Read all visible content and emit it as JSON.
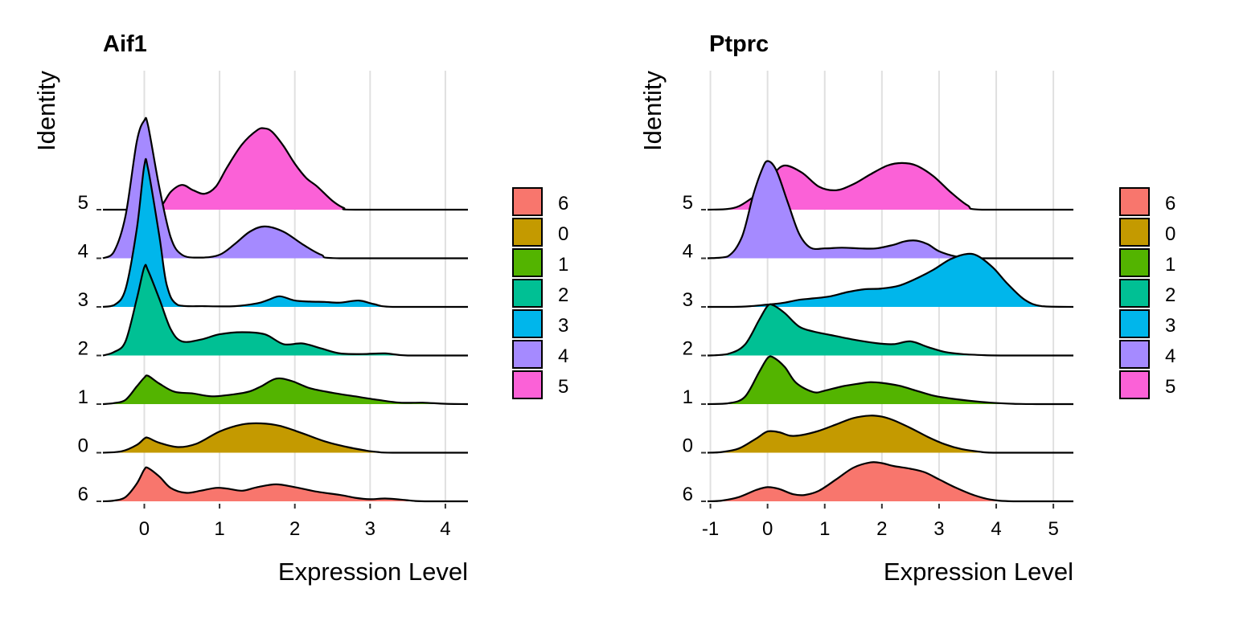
{
  "colors": {
    "6": "#F8766D",
    "0": "#C49A00",
    "1": "#53B400",
    "2": "#00C094",
    "3": "#00B6EB",
    "4": "#A58AFF",
    "5": "#FB61D7"
  },
  "chart_data": [
    {
      "type": "ridgeline",
      "title": "Aif1",
      "xlabel": "Expression Level",
      "ylabel": "Identity",
      "xlim": [
        -0.55,
        4.3
      ],
      "xticks": [
        "0",
        "1",
        "2",
        "3",
        "4"
      ],
      "yticks": [
        "6",
        "0",
        "1",
        "2",
        "3",
        "4",
        "5"
      ],
      "grid": true,
      "legend": {
        "position": "right",
        "entries": [
          "6",
          "0",
          "1",
          "2",
          "3",
          "4",
          "5"
        ]
      },
      "series": [
        {
          "name": "6",
          "x": [
            -0.55,
            -0.4,
            -0.25,
            -0.1,
            0.0,
            0.05,
            0.2,
            0.35,
            0.55,
            0.75,
            0.95,
            1.1,
            1.3,
            1.5,
            1.75,
            2.0,
            2.3,
            2.6,
            2.8,
            3.0,
            3.2,
            3.4,
            3.6,
            3.8,
            4.3
          ],
          "density": [
            0.0,
            0.02,
            0.12,
            0.5,
            0.9,
            0.94,
            0.7,
            0.38,
            0.24,
            0.3,
            0.38,
            0.36,
            0.3,
            0.4,
            0.48,
            0.4,
            0.27,
            0.18,
            0.1,
            0.06,
            0.08,
            0.05,
            0.01,
            0.0,
            0.0
          ]
        },
        {
          "name": "0",
          "x": [
            -0.55,
            -0.3,
            -0.1,
            0.0,
            0.05,
            0.2,
            0.45,
            0.7,
            1.0,
            1.3,
            1.55,
            1.8,
            2.1,
            2.4,
            2.7,
            2.95,
            3.1,
            3.3,
            4.3
          ],
          "density": [
            0.0,
            0.04,
            0.22,
            0.4,
            0.42,
            0.28,
            0.16,
            0.26,
            0.6,
            0.8,
            0.83,
            0.76,
            0.55,
            0.32,
            0.16,
            0.06,
            0.02,
            0.0,
            0.0
          ]
        },
        {
          "name": "1",
          "x": [
            -0.55,
            -0.4,
            -0.25,
            -0.1,
            0.0,
            0.05,
            0.2,
            0.4,
            0.65,
            0.9,
            1.2,
            1.4,
            1.55,
            1.75,
            1.95,
            2.2,
            2.5,
            2.8,
            3.1,
            3.4,
            3.7,
            4.0,
            4.3
          ],
          "density": [
            0.0,
            0.03,
            0.12,
            0.5,
            0.75,
            0.8,
            0.58,
            0.35,
            0.3,
            0.22,
            0.28,
            0.36,
            0.5,
            0.72,
            0.66,
            0.45,
            0.32,
            0.22,
            0.12,
            0.04,
            0.04,
            0.01,
            0.0
          ]
        },
        {
          "name": "2",
          "x": [
            -0.55,
            -0.4,
            -0.25,
            -0.1,
            0.0,
            0.05,
            0.2,
            0.35,
            0.5,
            0.75,
            1.0,
            1.3,
            1.6,
            1.85,
            2.1,
            2.35,
            2.6,
            2.9,
            3.2,
            3.5,
            4.3
          ],
          "density": [
            0.0,
            0.1,
            0.4,
            1.6,
            2.5,
            2.4,
            1.6,
            0.75,
            0.4,
            0.45,
            0.6,
            0.66,
            0.6,
            0.32,
            0.34,
            0.2,
            0.06,
            0.04,
            0.06,
            0.0,
            0.0
          ]
        },
        {
          "name": "3",
          "x": [
            -0.55,
            -0.4,
            -0.25,
            -0.1,
            0.0,
            0.05,
            0.2,
            0.3,
            0.45,
            0.8,
            1.2,
            1.5,
            1.65,
            1.8,
            2.0,
            2.2,
            2.4,
            2.6,
            2.85,
            3.05,
            3.3,
            4.3
          ],
          "density": [
            0.0,
            0.05,
            0.5,
            2.2,
            4.0,
            3.9,
            2.0,
            0.6,
            0.05,
            0.02,
            0.02,
            0.1,
            0.2,
            0.3,
            0.18,
            0.15,
            0.14,
            0.12,
            0.18,
            0.08,
            0.0,
            0.0
          ]
        },
        {
          "name": "4",
          "x": [
            -0.55,
            -0.4,
            -0.25,
            -0.1,
            0.0,
            0.05,
            0.2,
            0.35,
            0.5,
            0.75,
            1.0,
            1.2,
            1.4,
            1.6,
            1.85,
            2.1,
            2.35,
            2.6,
            4.3
          ],
          "density": [
            0.0,
            0.2,
            1.2,
            3.3,
            3.9,
            3.75,
            2.0,
            0.6,
            0.1,
            0.02,
            0.1,
            0.4,
            0.75,
            0.9,
            0.75,
            0.4,
            0.1,
            0.0,
            0.0
          ]
        },
        {
          "name": "5",
          "x": [
            -0.55,
            0.0,
            0.2,
            0.35,
            0.5,
            0.65,
            0.8,
            0.95,
            1.1,
            1.3,
            1.5,
            1.6,
            1.7,
            1.85,
            2.0,
            2.15,
            2.3,
            2.5,
            2.65,
            2.8,
            4.3
          ],
          "density": [
            0.0,
            0.0,
            0.05,
            0.5,
            0.7,
            0.55,
            0.45,
            0.65,
            1.2,
            1.85,
            2.25,
            2.3,
            2.2,
            1.8,
            1.3,
            0.9,
            0.65,
            0.25,
            0.05,
            0.0,
            0.0
          ]
        }
      ]
    },
    {
      "type": "ridgeline",
      "title": "Ptprc",
      "xlabel": "Expression Level",
      "ylabel": "Identity",
      "xlim": [
        -1.05,
        5.35
      ],
      "xticks": [
        "-1",
        "0",
        "1",
        "2",
        "3",
        "4",
        "5"
      ],
      "yticks": [
        "6",
        "0",
        "1",
        "2",
        "3",
        "4",
        "5"
      ],
      "grid": true,
      "legend": {
        "position": "right",
        "entries": [
          "6",
          "0",
          "1",
          "2",
          "3",
          "4",
          "5"
        ]
      },
      "series": [
        {
          "name": "6",
          "x": [
            -1.05,
            -0.8,
            -0.5,
            -0.2,
            0.0,
            0.2,
            0.45,
            0.65,
            0.9,
            1.2,
            1.5,
            1.8,
            2.0,
            2.2,
            2.5,
            2.75,
            3.0,
            3.3,
            3.6,
            3.9,
            4.3,
            5.35
          ],
          "density": [
            0.0,
            0.02,
            0.12,
            0.32,
            0.4,
            0.35,
            0.2,
            0.18,
            0.3,
            0.62,
            0.95,
            1.1,
            1.08,
            1.0,
            0.92,
            0.82,
            0.62,
            0.38,
            0.18,
            0.05,
            0.0,
            0.0
          ]
        },
        {
          "name": "0",
          "x": [
            -1.05,
            -0.8,
            -0.5,
            -0.2,
            0.0,
            0.2,
            0.4,
            0.6,
            0.9,
            1.2,
            1.5,
            1.8,
            2.0,
            2.2,
            2.5,
            2.8,
            3.1,
            3.4,
            3.7,
            4.0,
            5.35
          ],
          "density": [
            0.0,
            0.02,
            0.12,
            0.4,
            0.6,
            0.58,
            0.48,
            0.5,
            0.62,
            0.8,
            0.98,
            1.05,
            1.02,
            0.92,
            0.7,
            0.45,
            0.24,
            0.1,
            0.03,
            0.0,
            0.0
          ]
        },
        {
          "name": "1",
          "x": [
            -1.05,
            -0.7,
            -0.4,
            -0.15,
            0.0,
            0.1,
            0.3,
            0.5,
            0.8,
            1.0,
            1.3,
            1.6,
            1.8,
            2.0,
            2.3,
            2.6,
            2.9,
            3.2,
            3.5,
            3.9,
            4.3,
            4.7,
            5.35
          ],
          "density": [
            0.0,
            0.02,
            0.2,
            0.9,
            1.3,
            1.32,
            1.05,
            0.6,
            0.34,
            0.38,
            0.5,
            0.58,
            0.62,
            0.6,
            0.52,
            0.38,
            0.24,
            0.16,
            0.1,
            0.04,
            0.01,
            0.0,
            0.0
          ]
        },
        {
          "name": "2",
          "x": [
            -1.05,
            -0.7,
            -0.4,
            -0.15,
            0.0,
            0.1,
            0.3,
            0.55,
            0.8,
            1.1,
            1.5,
            1.9,
            2.2,
            2.5,
            2.8,
            3.1,
            3.4,
            3.8,
            4.2,
            5.35
          ],
          "density": [
            0.0,
            0.04,
            0.3,
            1.0,
            1.4,
            1.42,
            1.2,
            0.82,
            0.68,
            0.58,
            0.45,
            0.35,
            0.32,
            0.4,
            0.24,
            0.1,
            0.04,
            0.01,
            0.0,
            0.0
          ]
        },
        {
          "name": "3",
          "x": [
            -1.05,
            -0.6,
            -0.3,
            -0.1,
            0.1,
            0.3,
            0.55,
            0.8,
            1.1,
            1.4,
            1.7,
            2.0,
            2.3,
            2.6,
            2.9,
            3.2,
            3.5,
            3.7,
            3.95,
            4.2,
            4.5,
            4.8,
            5.35
          ],
          "density": [
            0.0,
            0.0,
            0.02,
            0.05,
            0.08,
            0.12,
            0.2,
            0.24,
            0.3,
            0.42,
            0.5,
            0.52,
            0.6,
            0.8,
            1.05,
            1.35,
            1.5,
            1.42,
            1.1,
            0.65,
            0.2,
            0.02,
            0.0
          ]
        },
        {
          "name": "4",
          "x": [
            -1.05,
            -0.7,
            -0.45,
            -0.25,
            -0.1,
            0.0,
            0.15,
            0.35,
            0.55,
            0.75,
            1.0,
            1.3,
            1.6,
            1.9,
            2.2,
            2.4,
            2.6,
            2.8,
            3.0,
            3.3,
            3.6,
            5.35
          ],
          "density": [
            0.0,
            0.05,
            0.6,
            1.8,
            2.5,
            2.75,
            2.5,
            1.6,
            0.7,
            0.3,
            0.28,
            0.3,
            0.28,
            0.28,
            0.38,
            0.48,
            0.5,
            0.4,
            0.2,
            0.05,
            0.0,
            0.0
          ]
        },
        {
          "name": "5",
          "x": [
            -1.05,
            -0.7,
            -0.5,
            -0.3,
            -0.1,
            0.1,
            0.3,
            0.6,
            0.9,
            1.2,
            1.5,
            1.8,
            2.1,
            2.35,
            2.6,
            2.9,
            3.2,
            3.5,
            3.75,
            5.35
          ],
          "density": [
            0.0,
            0.02,
            0.1,
            0.3,
            0.55,
            1.0,
            1.25,
            1.05,
            0.65,
            0.55,
            0.72,
            1.0,
            1.25,
            1.32,
            1.25,
            0.95,
            0.5,
            0.12,
            0.0,
            0.0
          ]
        }
      ]
    }
  ]
}
